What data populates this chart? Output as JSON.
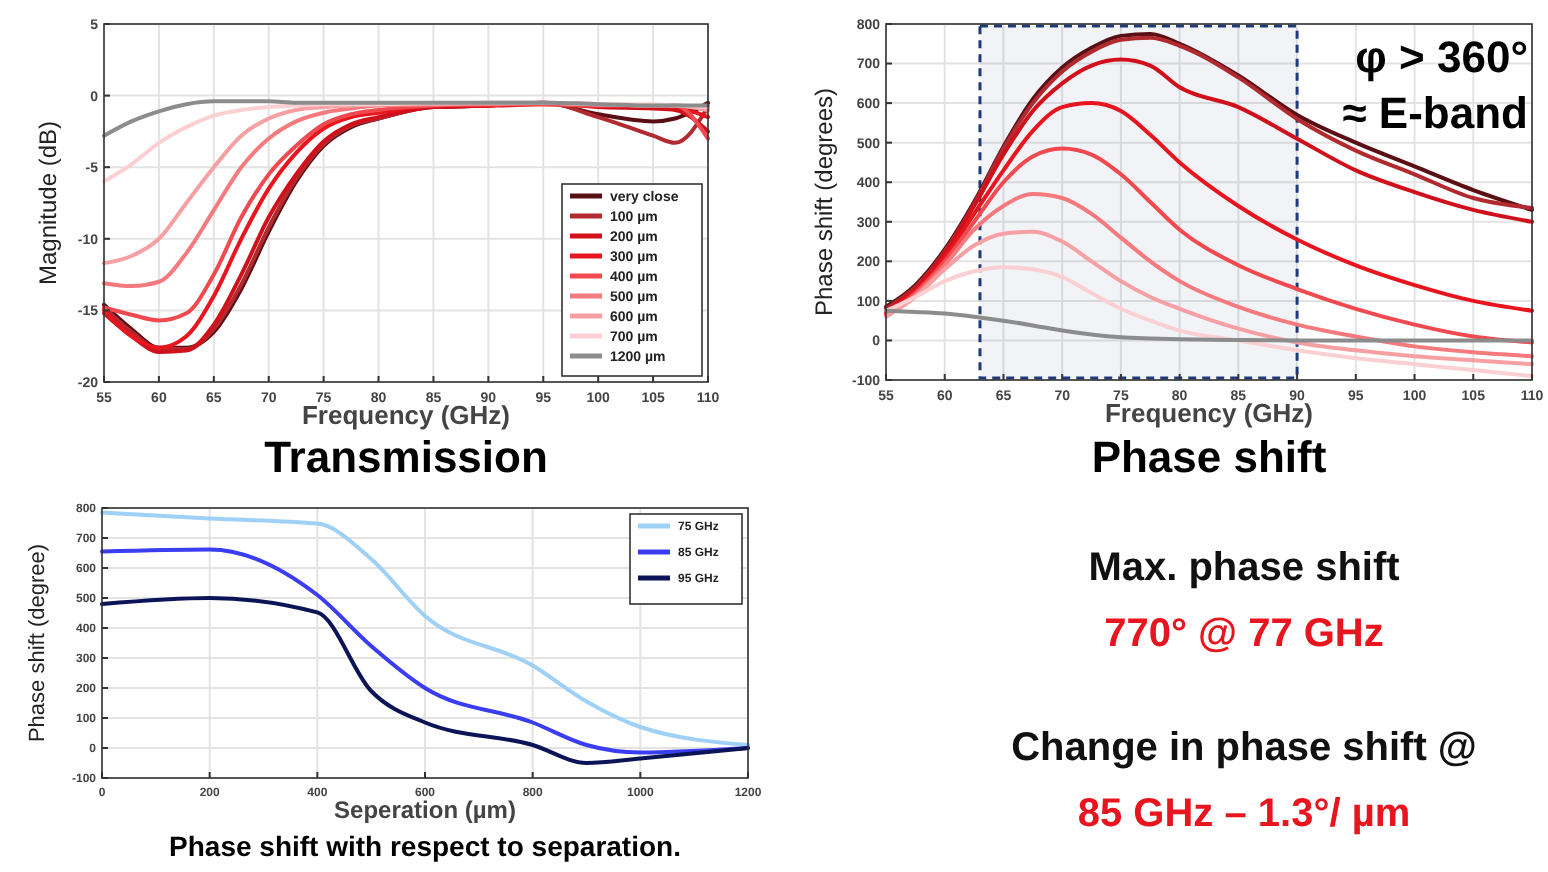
{
  "chart_data": [
    {
      "type": "line",
      "title": "Transmission",
      "xlabel": "Frequency (GHz)",
      "ylabel": "Magnitude (dB)",
      "xlim": [
        55,
        110
      ],
      "xticks": [
        55,
        60,
        65,
        70,
        75,
        80,
        85,
        90,
        95,
        100,
        105,
        110
      ],
      "ylim": [
        -20,
        5
      ],
      "yticks": [
        -20,
        -15,
        -10,
        -5,
        0,
        5
      ],
      "grid": true,
      "legend": "bottom right",
      "x": [
        55,
        57.5,
        60,
        62.5,
        65,
        67.5,
        70,
        72.5,
        75,
        77.5,
        80,
        85,
        90,
        95,
        100,
        105,
        107,
        110
      ],
      "series": [
        {
          "name": "very close",
          "color": "#5a0f14",
          "values": [
            -14.6,
            -16.3,
            -17.6,
            -17.6,
            -16.5,
            -13.5,
            -9.5,
            -6,
            -3.5,
            -2.2,
            -1.6,
            -0.8,
            -0.7,
            -0.5,
            -1.3,
            -1.8,
            -1.6,
            -0.5
          ]
        },
        {
          "name": "100 µm",
          "color": "#b02a30",
          "values": [
            -14.8,
            -16.5,
            -17.7,
            -17.7,
            -16.3,
            -13.2,
            -9.2,
            -5.8,
            -3.4,
            -2.1,
            -1.6,
            -0.8,
            -0.7,
            -0.5,
            -1.5,
            -2.8,
            -3.3,
            -0.8
          ]
        },
        {
          "name": "200 µm",
          "color": "#d0101a",
          "values": [
            -15.2,
            -16.8,
            -17.9,
            -17.8,
            -16,
            -12.5,
            -8.5,
            -5.5,
            -3.2,
            -2,
            -1.5,
            -0.8,
            -0.7,
            -0.5,
            -0.8,
            -0.9,
            -1,
            -2.5
          ]
        },
        {
          "name": "300 µm",
          "color": "#e8141e",
          "values": [
            -15,
            -16.8,
            -17.6,
            -16.8,
            -14,
            -10,
            -6.5,
            -4,
            -2.3,
            -1.5,
            -1.2,
            -0.7,
            -0.7,
            -0.6,
            -0.7,
            -0.7,
            -0.8,
            -1.5
          ]
        },
        {
          "name": "400 µm",
          "color": "#f04a50",
          "values": [
            -14.8,
            -15.3,
            -15.7,
            -15.2,
            -12.5,
            -8.5,
            -5.5,
            -3.5,
            -2,
            -1.3,
            -1,
            -0.7,
            -0.6,
            -0.6,
            -0.7,
            -0.7,
            -0.7,
            -3
          ]
        },
        {
          "name": "500 µm",
          "color": "#f47a7e",
          "values": [
            -13.1,
            -13.3,
            -13,
            -11,
            -8,
            -5,
            -3,
            -1.8,
            -1.2,
            -0.9,
            -0.7,
            -0.6,
            -0.6,
            -0.5,
            -0.6,
            -0.7,
            -0.7,
            -1
          ]
        },
        {
          "name": "600 µm",
          "color": "#f7a0a3",
          "values": [
            -11.7,
            -11.2,
            -10,
            -7.5,
            -5,
            -2.8,
            -1.6,
            -1,
            -0.8,
            -0.7,
            -0.6,
            -0.6,
            -0.5,
            -0.5,
            -0.6,
            -0.7,
            -0.7,
            -1
          ]
        },
        {
          "name": "700 µm",
          "color": "#fad0d2",
          "values": [
            -6,
            -4.8,
            -3.3,
            -2.2,
            -1.4,
            -1,
            -0.8,
            -0.7,
            -0.6,
            -0.6,
            -0.6,
            -0.5,
            -0.5,
            -0.5,
            -0.6,
            -0.6,
            -0.7,
            -0.8
          ]
        },
        {
          "name": "1200 µm",
          "color": "#8c8c8c",
          "values": [
            -2.8,
            -1.8,
            -1.1,
            -0.6,
            -0.4,
            -0.4,
            -0.4,
            -0.5,
            -0.5,
            -0.5,
            -0.5,
            -0.5,
            -0.5,
            -0.5,
            -0.6,
            -0.7,
            -0.7,
            -0.7
          ]
        }
      ]
    },
    {
      "type": "line",
      "title": "Phase shift",
      "xlabel": "Frequency (GHz)",
      "ylabel": "Phase shift (degrees)",
      "xlim": [
        55,
        110
      ],
      "xticks": [
        55,
        60,
        65,
        70,
        75,
        80,
        85,
        90,
        95,
        100,
        105,
        110
      ],
      "ylim": [
        -100,
        800
      ],
      "yticks": [
        -100,
        0,
        100,
        200,
        300,
        400,
        500,
        600,
        700,
        800
      ],
      "grid": true,
      "x": [
        55,
        57.5,
        60,
        62.5,
        65,
        67.5,
        70,
        72.5,
        75,
        77.5,
        80,
        85,
        90,
        95,
        100,
        105,
        110
      ],
      "bands": [
        {
          "axis": "x",
          "from": 63,
          "to": 90,
          "color": "#1f3a7a"
        }
      ],
      "annotations": [
        "φ > 360°",
        "≈ E-band"
      ],
      "series": [
        {
          "color": "#5a0f14",
          "values": [
            85,
            140,
            230,
            350,
            490,
            610,
            690,
            740,
            770,
            775,
            750,
            670,
            570,
            500,
            440,
            380,
            330
          ]
        },
        {
          "color": "#b02a30",
          "values": [
            80,
            135,
            225,
            345,
            485,
            600,
            680,
            730,
            760,
            765,
            745,
            665,
            560,
            480,
            420,
            360,
            335
          ]
        },
        {
          "color": "#d0101a",
          "values": [
            75,
            130,
            220,
            340,
            470,
            580,
            650,
            695,
            710,
            695,
            640,
            590,
            510,
            430,
            375,
            330,
            300
          ]
        },
        {
          "color": "#e8141e",
          "values": [
            70,
            125,
            210,
            320,
            430,
            530,
            590,
            600,
            580,
            520,
            450,
            340,
            255,
            190,
            140,
            100,
            75
          ]
        },
        {
          "color": "#f04a50",
          "values": [
            65,
            120,
            200,
            300,
            400,
            465,
            485,
            470,
            420,
            350,
            280,
            190,
            130,
            80,
            40,
            10,
            -5
          ]
        },
        {
          "color": "#f47a7e",
          "values": [
            60,
            115,
            190,
            280,
            340,
            370,
            360,
            320,
            260,
            200,
            150,
            85,
            40,
            10,
            -15,
            -30,
            -40
          ]
        },
        {
          "color": "#f7a0a3",
          "values": [
            60,
            110,
            180,
            240,
            270,
            275,
            250,
            200,
            150,
            110,
            80,
            30,
            -5,
            -25,
            -40,
            -50,
            -60
          ]
        },
        {
          "color": "#fad0d2",
          "values": [
            75,
            110,
            150,
            175,
            185,
            180,
            160,
            120,
            80,
            50,
            25,
            0,
            -25,
            -45,
            -60,
            -75,
            -90
          ]
        },
        {
          "color": "#8c8c8c",
          "values": [
            75,
            72,
            68,
            60,
            50,
            38,
            25,
            15,
            8,
            5,
            3,
            1,
            0,
            0,
            0,
            0,
            0
          ]
        }
      ]
    },
    {
      "type": "line",
      "title": "Phase shift with respect to separation.",
      "xlabel": "Seperation (µm)",
      "ylabel": "Phase shift (degree)",
      "xlim": [
        0,
        1200
      ],
      "xticks": [
        0,
        200,
        400,
        600,
        800,
        1000,
        1200
      ],
      "ylim": [
        -100,
        800
      ],
      "yticks": [
        -100,
        0,
        100,
        200,
        300,
        400,
        500,
        600,
        700,
        800
      ],
      "grid": true,
      "legend": "top right",
      "x": [
        0,
        200,
        400,
        500,
        600,
        800,
        900,
        1000,
        1200
      ],
      "series": [
        {
          "name": "75 GHz",
          "color": "#9fd0f5",
          "values": [
            785,
            765,
            748,
            630,
            440,
            275,
            155,
            70,
            10
          ]
        },
        {
          "name": "85 GHz",
          "color": "#3a3df0",
          "values": [
            655,
            662,
            510,
            340,
            200,
            85,
            10,
            -15,
            0
          ]
        },
        {
          "name": "95 GHz",
          "color": "#0b1457",
          "values": [
            480,
            500,
            452,
            190,
            85,
            10,
            -50,
            -35,
            0
          ]
        }
      ]
    },
    {
      "type": "other",
      "annotations": [
        "Max. phase shift",
        "770° @ 77 GHz",
        "Change in phase shift @",
        "85 GHz – 1.3°/ µm"
      ]
    }
  ]
}
